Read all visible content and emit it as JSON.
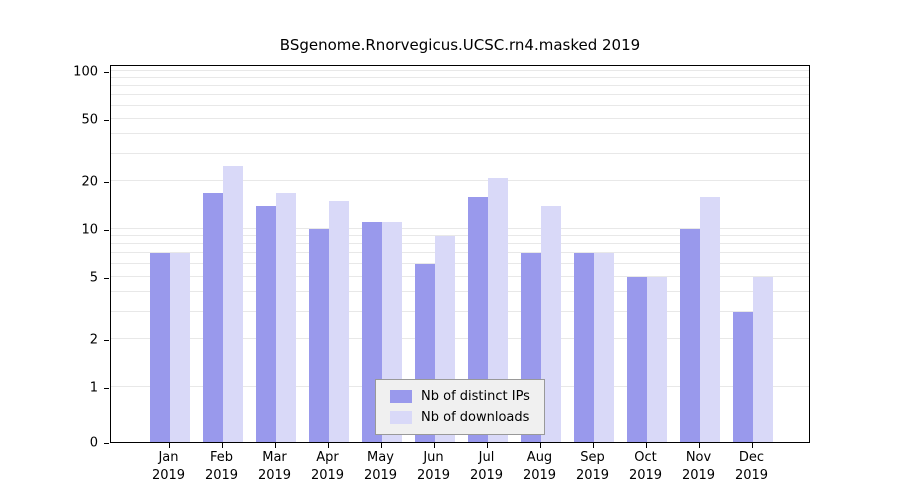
{
  "colors": {
    "distinct_ips": "#9999ec",
    "downloads": "#d9d9f8",
    "grid": "#e8e8e8",
    "axis": "#000000",
    "legend_bg": "#f0f0f0",
    "legend_border": "#999999"
  },
  "chart_data": {
    "type": "bar",
    "title": "BSgenome.Rnorvegicus.UCSC.rn4.masked 2019",
    "categories": [
      {
        "month": "Jan",
        "year": "2019"
      },
      {
        "month": "Feb",
        "year": "2019"
      },
      {
        "month": "Mar",
        "year": "2019"
      },
      {
        "month": "Apr",
        "year": "2019"
      },
      {
        "month": "May",
        "year": "2019"
      },
      {
        "month": "Jun",
        "year": "2019"
      },
      {
        "month": "Jul",
        "year": "2019"
      },
      {
        "month": "Aug",
        "year": "2019"
      },
      {
        "month": "Sep",
        "year": "2019"
      },
      {
        "month": "Oct",
        "year": "2019"
      },
      {
        "month": "Nov",
        "year": "2019"
      },
      {
        "month": "Dec",
        "year": "2019"
      }
    ],
    "series": [
      {
        "name": "Nb of distinct IPs",
        "color": "#9999ec",
        "values": [
          7,
          17,
          14,
          10,
          11,
          6,
          16,
          7,
          7,
          5,
          10,
          3
        ]
      },
      {
        "name": "Nb of downloads",
        "color": "#d9d9f8",
        "values": [
          7,
          25,
          17,
          15,
          11,
          9,
          21,
          14,
          7,
          5,
          16,
          5
        ]
      }
    ],
    "yscale": "log",
    "ylim": [
      0,
      100
    ],
    "yticks": [
      0,
      1,
      2,
      5,
      10,
      20,
      50,
      100
    ],
    "grid_values": [
      1,
      2,
      3,
      4,
      5,
      6,
      7,
      8,
      9,
      10,
      20,
      30,
      40,
      50,
      60,
      70,
      80,
      90,
      100
    ],
    "grid": true,
    "legend_position": "inside-bottom-center"
  }
}
